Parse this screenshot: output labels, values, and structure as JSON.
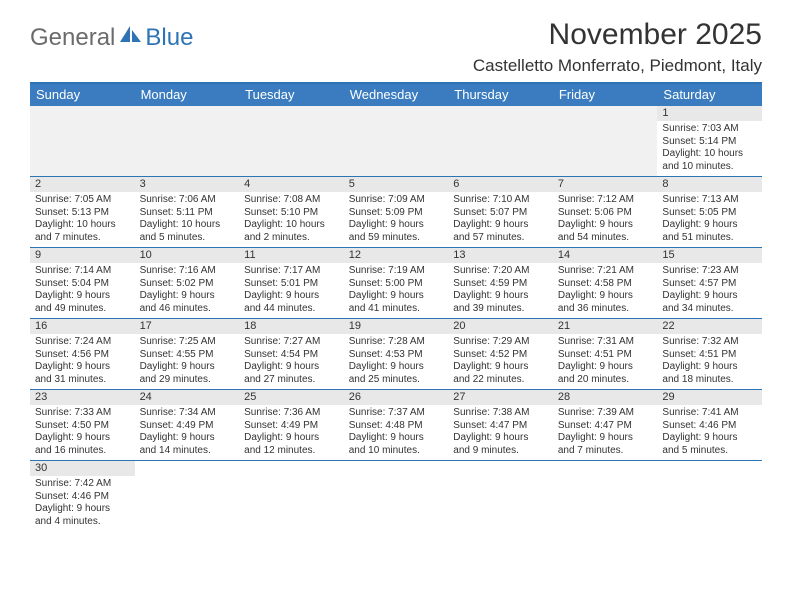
{
  "logo": {
    "text1": "General",
    "text2": "Blue"
  },
  "title": "November 2025",
  "location": "Castelletto Monferrato, Piedmont, Italy",
  "headerColor": "#3a7cbf",
  "dayNames": [
    "Sunday",
    "Monday",
    "Tuesday",
    "Wednesday",
    "Thursday",
    "Friday",
    "Saturday"
  ],
  "weeks": [
    [
      null,
      null,
      null,
      null,
      null,
      null,
      {
        "d": "1",
        "sr": "7:03 AM",
        "ss": "5:14 PM",
        "dl1": "Daylight: 10 hours",
        "dl2": "and 10 minutes."
      }
    ],
    [
      {
        "d": "2",
        "sr": "7:05 AM",
        "ss": "5:13 PM",
        "dl1": "Daylight: 10 hours",
        "dl2": "and 7 minutes."
      },
      {
        "d": "3",
        "sr": "7:06 AM",
        "ss": "5:11 PM",
        "dl1": "Daylight: 10 hours",
        "dl2": "and 5 minutes."
      },
      {
        "d": "4",
        "sr": "7:08 AM",
        "ss": "5:10 PM",
        "dl1": "Daylight: 10 hours",
        "dl2": "and 2 minutes."
      },
      {
        "d": "5",
        "sr": "7:09 AM",
        "ss": "5:09 PM",
        "dl1": "Daylight: 9 hours",
        "dl2": "and 59 minutes."
      },
      {
        "d": "6",
        "sr": "7:10 AM",
        "ss": "5:07 PM",
        "dl1": "Daylight: 9 hours",
        "dl2": "and 57 minutes."
      },
      {
        "d": "7",
        "sr": "7:12 AM",
        "ss": "5:06 PM",
        "dl1": "Daylight: 9 hours",
        "dl2": "and 54 minutes."
      },
      {
        "d": "8",
        "sr": "7:13 AM",
        "ss": "5:05 PM",
        "dl1": "Daylight: 9 hours",
        "dl2": "and 51 minutes."
      }
    ],
    [
      {
        "d": "9",
        "sr": "7:14 AM",
        "ss": "5:04 PM",
        "dl1": "Daylight: 9 hours",
        "dl2": "and 49 minutes."
      },
      {
        "d": "10",
        "sr": "7:16 AM",
        "ss": "5:02 PM",
        "dl1": "Daylight: 9 hours",
        "dl2": "and 46 minutes."
      },
      {
        "d": "11",
        "sr": "7:17 AM",
        "ss": "5:01 PM",
        "dl1": "Daylight: 9 hours",
        "dl2": "and 44 minutes."
      },
      {
        "d": "12",
        "sr": "7:19 AM",
        "ss": "5:00 PM",
        "dl1": "Daylight: 9 hours",
        "dl2": "and 41 minutes."
      },
      {
        "d": "13",
        "sr": "7:20 AM",
        "ss": "4:59 PM",
        "dl1": "Daylight: 9 hours",
        "dl2": "and 39 minutes."
      },
      {
        "d": "14",
        "sr": "7:21 AM",
        "ss": "4:58 PM",
        "dl1": "Daylight: 9 hours",
        "dl2": "and 36 minutes."
      },
      {
        "d": "15",
        "sr": "7:23 AM",
        "ss": "4:57 PM",
        "dl1": "Daylight: 9 hours",
        "dl2": "and 34 minutes."
      }
    ],
    [
      {
        "d": "16",
        "sr": "7:24 AM",
        "ss": "4:56 PM",
        "dl1": "Daylight: 9 hours",
        "dl2": "and 31 minutes."
      },
      {
        "d": "17",
        "sr": "7:25 AM",
        "ss": "4:55 PM",
        "dl1": "Daylight: 9 hours",
        "dl2": "and 29 minutes."
      },
      {
        "d": "18",
        "sr": "7:27 AM",
        "ss": "4:54 PM",
        "dl1": "Daylight: 9 hours",
        "dl2": "and 27 minutes."
      },
      {
        "d": "19",
        "sr": "7:28 AM",
        "ss": "4:53 PM",
        "dl1": "Daylight: 9 hours",
        "dl2": "and 25 minutes."
      },
      {
        "d": "20",
        "sr": "7:29 AM",
        "ss": "4:52 PM",
        "dl1": "Daylight: 9 hours",
        "dl2": "and 22 minutes."
      },
      {
        "d": "21",
        "sr": "7:31 AM",
        "ss": "4:51 PM",
        "dl1": "Daylight: 9 hours",
        "dl2": "and 20 minutes."
      },
      {
        "d": "22",
        "sr": "7:32 AM",
        "ss": "4:51 PM",
        "dl1": "Daylight: 9 hours",
        "dl2": "and 18 minutes."
      }
    ],
    [
      {
        "d": "23",
        "sr": "7:33 AM",
        "ss": "4:50 PM",
        "dl1": "Daylight: 9 hours",
        "dl2": "and 16 minutes."
      },
      {
        "d": "24",
        "sr": "7:34 AM",
        "ss": "4:49 PM",
        "dl1": "Daylight: 9 hours",
        "dl2": "and 14 minutes."
      },
      {
        "d": "25",
        "sr": "7:36 AM",
        "ss": "4:49 PM",
        "dl1": "Daylight: 9 hours",
        "dl2": "and 12 minutes."
      },
      {
        "d": "26",
        "sr": "7:37 AM",
        "ss": "4:48 PM",
        "dl1": "Daylight: 9 hours",
        "dl2": "and 10 minutes."
      },
      {
        "d": "27",
        "sr": "7:38 AM",
        "ss": "4:47 PM",
        "dl1": "Daylight: 9 hours",
        "dl2": "and 9 minutes."
      },
      {
        "d": "28",
        "sr": "7:39 AM",
        "ss": "4:47 PM",
        "dl1": "Daylight: 9 hours",
        "dl2": "and 7 minutes."
      },
      {
        "d": "29",
        "sr": "7:41 AM",
        "ss": "4:46 PM",
        "dl1": "Daylight: 9 hours",
        "dl2": "and 5 minutes."
      }
    ],
    [
      {
        "d": "30",
        "sr": "7:42 AM",
        "ss": "4:46 PM",
        "dl1": "Daylight: 9 hours",
        "dl2": "and 4 minutes."
      },
      null,
      null,
      null,
      null,
      null,
      null
    ]
  ]
}
